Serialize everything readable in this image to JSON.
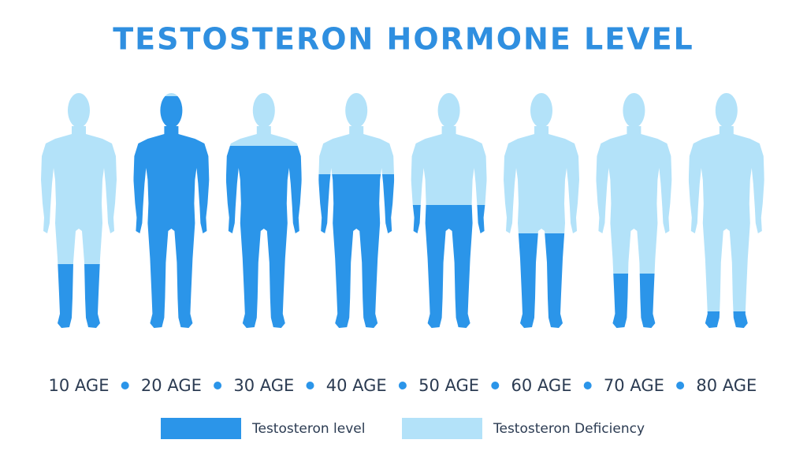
{
  "chart_data": {
    "type": "pictogram",
    "title": "TESTOSTERON HORMONE LEVEL",
    "categories": [
      "10 AGE",
      "20 AGE",
      "30 AGE",
      "40 AGE",
      "50 AGE",
      "60 AGE",
      "70 AGE",
      "80 AGE"
    ],
    "ylim": [
      0,
      100
    ],
    "series": [
      {
        "name": "Testosteron level",
        "color": "#2b95e9",
        "values": [
          29,
          100,
          79,
          67,
          54,
          42,
          25,
          9
        ]
      },
      {
        "name": "Testosteron Deficiency",
        "color": "#b3e2f9",
        "values": [
          71,
          0,
          21,
          33,
          46,
          58,
          75,
          91
        ]
      }
    ]
  }
}
